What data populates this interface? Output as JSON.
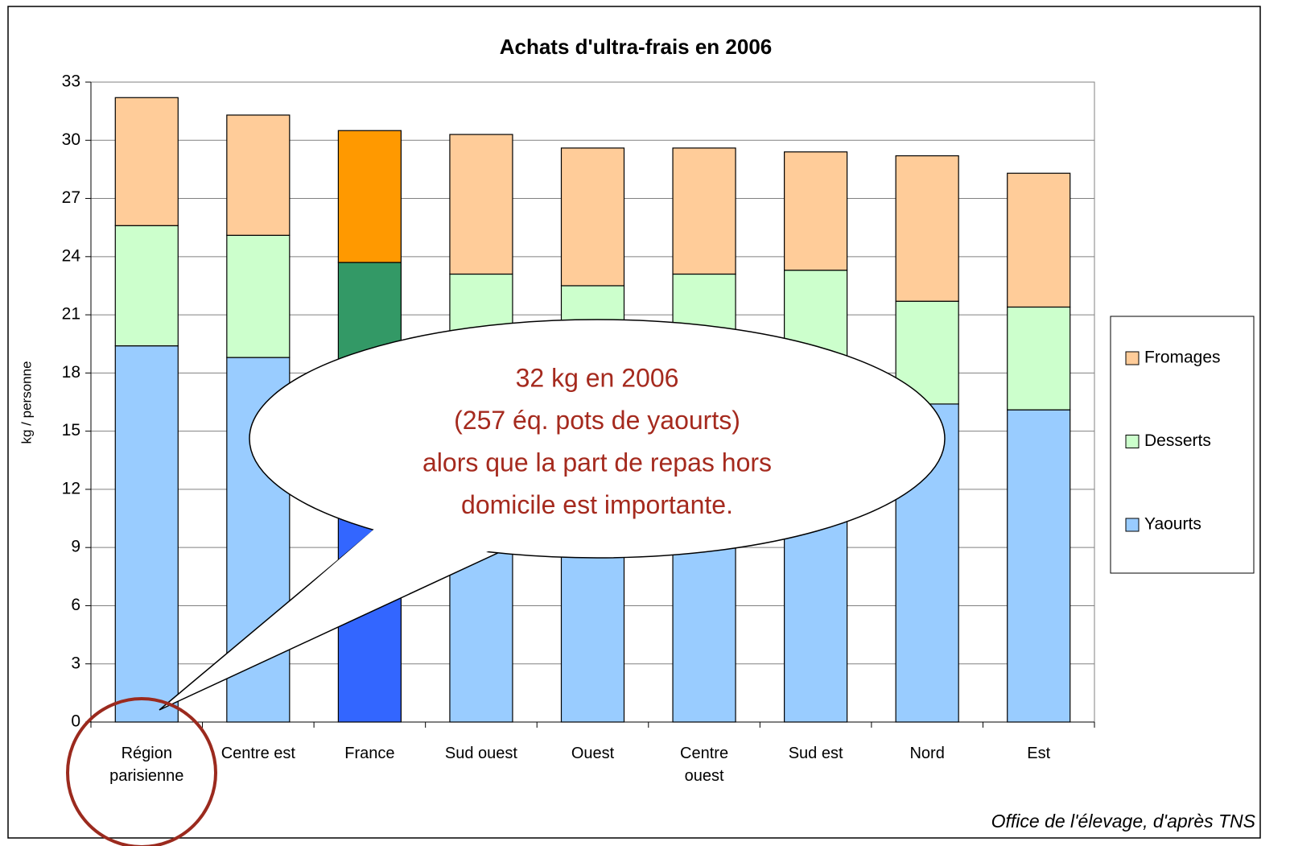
{
  "chart_data": {
    "type": "stacked_bar",
    "title": "Achats d'ultra-frais en 2006",
    "y_label": "kg / personne",
    "source": "Office de l'élevage, d'après TNS",
    "annotation": [
      "32 kg en 2006",
      "(257 éq. pots de yaourts)",
      "alors que la part de repas hors",
      "domicile est importante."
    ],
    "categories": [
      "Région parisienne",
      "Centre est",
      "France",
      "Sud ouest",
      "Ouest",
      "Centre ouest",
      "Sud est",
      "Nord",
      "Est"
    ],
    "series": [
      {
        "name": "Yaourts",
        "color": "#99ccff",
        "colors": [
          "#99ccff",
          "#99ccff",
          "#3366ff",
          "#99ccff",
          "#99ccff",
          "#99ccff",
          "#99ccff",
          "#99ccff",
          "#99ccff"
        ],
        "values": [
          19.4,
          18.8,
          17.9,
          17.5,
          17.0,
          17.6,
          18.0,
          16.4,
          16.1
        ]
      },
      {
        "name": "Desserts",
        "color": "#ccffcc",
        "colors": [
          "#ccffcc",
          "#ccffcc",
          "#339966",
          "#ccffcc",
          "#ccffcc",
          "#ccffcc",
          "#ccffcc",
          "#ccffcc",
          "#ccffcc"
        ],
        "values": [
          6.2,
          6.3,
          5.8,
          5.6,
          5.5,
          5.5,
          5.3,
          5.3,
          5.3
        ]
      },
      {
        "name": "Fromages",
        "color": "#ffcc99",
        "colors": [
          "#ffcc99",
          "#ffcc99",
          "#ff9900",
          "#ffcc99",
          "#ffcc99",
          "#ffcc99",
          "#ffcc99",
          "#ffcc99",
          "#ffcc99"
        ],
        "values": [
          6.6,
          6.2,
          6.8,
          7.2,
          7.1,
          6.5,
          6.1,
          7.5,
          6.9
        ]
      }
    ],
    "ylim": [
      0,
      33
    ],
    "yticks": [
      0,
      3,
      6,
      9,
      12,
      15,
      18,
      21,
      24,
      27,
      30,
      33
    ],
    "grid": true,
    "legend": "right"
  }
}
